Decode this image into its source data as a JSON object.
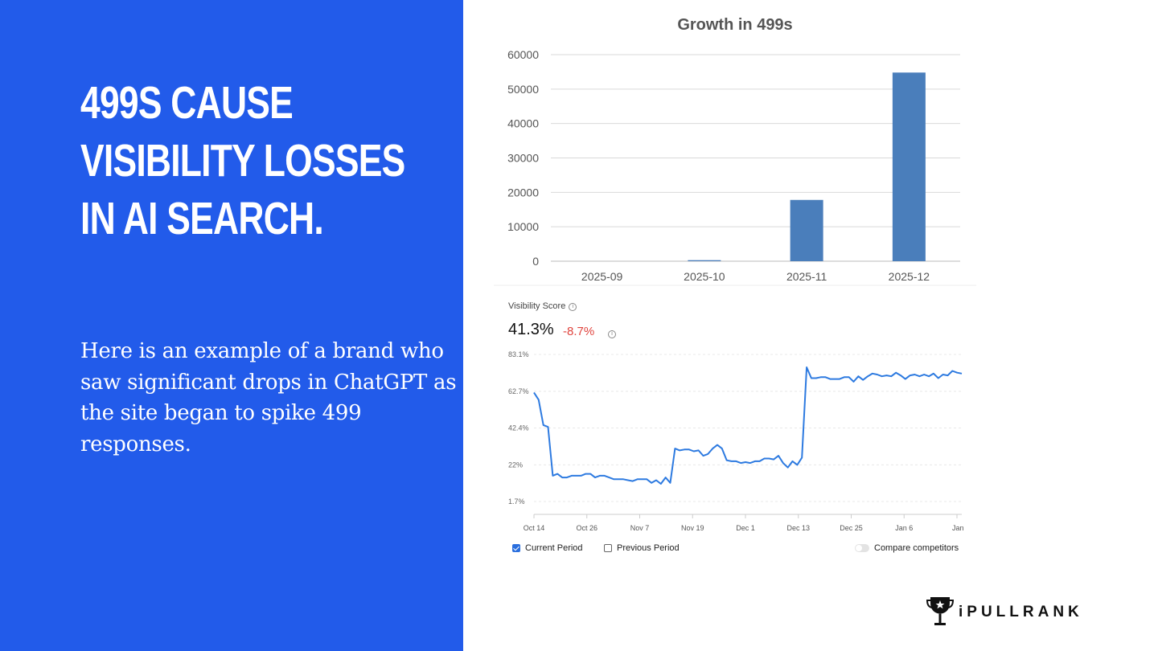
{
  "slide": {
    "headline": [
      "499S CAUSE",
      "VISIBILITY LOSSES",
      "IN AI SEARCH."
    ],
    "body": "Here is an example of a brand who saw significant drops in ChatGPT as the site began to spike 499 responses.",
    "background_color": "#225bea",
    "logo_text": "iPULLRANK",
    "logo_icon": "trophy-icon"
  },
  "visibility_panel": {
    "label": "Visibility Score",
    "value": "41.3%",
    "delta": "-8.7%",
    "legend": {
      "current_period": "Current Period",
      "previous_period": "Previous Period",
      "compare_competitors": "Compare competitors"
    }
  },
  "chart_data": [
    {
      "type": "bar",
      "title": "Growth in 499s",
      "categories": [
        "2025-09",
        "2025-10",
        "2025-11",
        "2025-12"
      ],
      "values": [
        0,
        300,
        17800,
        54800
      ],
      "ylim": [
        0,
        60000
      ],
      "yticks": [
        0,
        10000,
        20000,
        30000,
        40000,
        50000,
        60000
      ],
      "grid": true,
      "bar_color": "#4a7ebb"
    },
    {
      "type": "line",
      "title": "",
      "ylabel": "",
      "yticks": [
        "83.1%",
        "62.7%",
        "42.4%",
        "22%",
        "1.7%"
      ],
      "ytick_values": [
        83.1,
        62.7,
        42.4,
        22,
        1.7
      ],
      "ylim": [
        1.7,
        83.1
      ],
      "xticks": [
        "Oct 14",
        "Oct 26",
        "Nov 7",
        "Nov 19",
        "Dec 1",
        "Dec 13",
        "Dec 25",
        "Jan 6",
        "Jan"
      ],
      "grid": true,
      "line_color": "#2d7ae0",
      "series": [
        {
          "name": "Current Period",
          "values": [
            62,
            58,
            44,
            43,
            16,
            17,
            15,
            15,
            16,
            16,
            16,
            17,
            17,
            15,
            16,
            16,
            15,
            14,
            14,
            14,
            13.5,
            13,
            14,
            14,
            14,
            12,
            13.5,
            11.5,
            15,
            12,
            31,
            30,
            30.5,
            30.5,
            29.5,
            30,
            27,
            28,
            31,
            33,
            31,
            24.5,
            24,
            24,
            23,
            23.5,
            23,
            24,
            24,
            25.5,
            25.5,
            25,
            27,
            23,
            20.5,
            24,
            22,
            26,
            76,
            70,
            70,
            70.5,
            70.5,
            69.5,
            69.5,
            69.5,
            70.5,
            70.5,
            68,
            71,
            69,
            71,
            72.5,
            72,
            71,
            71.5,
            71,
            73,
            71.5,
            69.5,
            71.5,
            72,
            71,
            72,
            71,
            72.5,
            70,
            72,
            71.5,
            74,
            73,
            72.5
          ]
        }
      ]
    }
  ]
}
